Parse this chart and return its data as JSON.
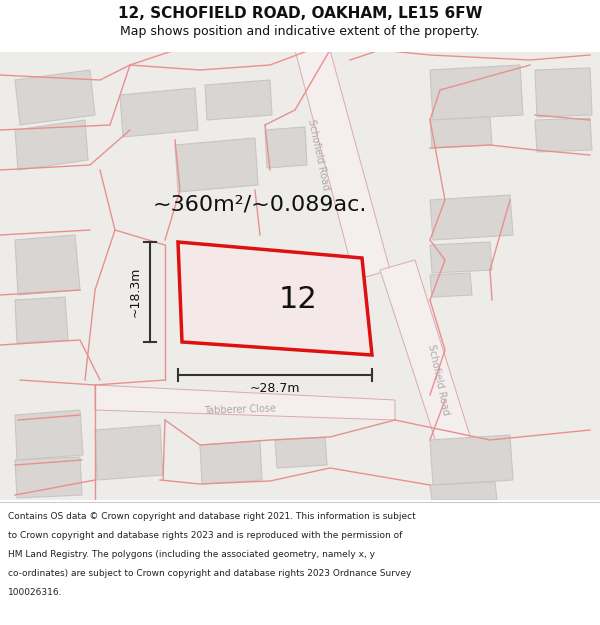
{
  "title": "12, SCHOFIELD ROAD, OAKHAM, LE15 6FW",
  "subtitle": "Map shows position and indicative extent of the property.",
  "area_label": "~360m²/~0.089ac.",
  "width_label": "~28.7m",
  "height_label": "~18.3m",
  "house_number": "12",
  "map_bg": "#eeece8",
  "building_fill": "#d8d5d2",
  "building_edge": "#c8c5c2",
  "red_plot_color": "#dd1111",
  "plot_fill": "#f5e8e8",
  "dim_line_color": "#333333",
  "road_label_color": "#b0a8a8",
  "title_color": "#111111",
  "road_fill": "#f5eeee",
  "road_edge": "#ddaaaa",
  "parcel_line_color": "#e89090",
  "footer_lines": [
    "Contains OS data © Crown copyright and database right 2021. This information is subject",
    "to Crown copyright and database rights 2023 and is reproduced with the permission of",
    "HM Land Registry. The polygons (including the associated geometry, namely x, y",
    "co-ordinates) are subject to Crown copyright and database rights 2023 Ordnance Survey",
    "100026316."
  ]
}
